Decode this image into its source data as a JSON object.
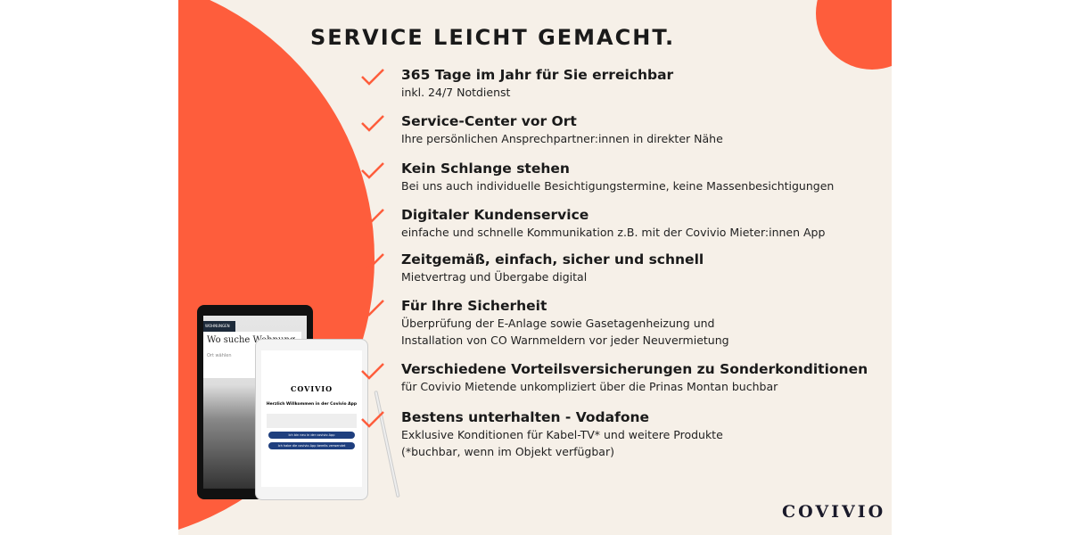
{
  "title": "SERVICE LEICHT GEMACHT.",
  "colors": {
    "accent": "#fe5d3c",
    "background": "#f6f0e8",
    "text": "#1a1a1a"
  },
  "items": [
    {
      "icon": "check-icon",
      "heading": "365 Tage im Jahr für Sie erreichbar",
      "lines": [
        "inkl. 24/7 Notdienst"
      ]
    },
    {
      "icon": "check-icon",
      "heading": "Service-Center vor Ort",
      "lines": [
        "Ihre persönlichen Ansprechpartner:innen in direkter Nähe"
      ]
    },
    {
      "icon": "check-icon",
      "heading": "Kein Schlange stehen",
      "lines": [
        "Bei uns auch individuelle Besichtigungstermine, keine Massenbesichtigungen"
      ]
    },
    {
      "icon": "check-icon",
      "heading": "Digitaler Kundenservice",
      "lines": [
        "einfache und schnelle Kommunikation z.B. mit der Covivio Mieter:innen App"
      ]
    },
    {
      "icon": "check-icon",
      "heading": "Zeitgemäß, einfach, sicher und schnell",
      "lines": [
        "Mietvertrag und Übergabe digital"
      ]
    },
    {
      "icon": "check-icon",
      "heading": "Für Ihre Sicherheit",
      "lines": [
        "Überprüfung der E-Anlage sowie Gasetagenheizung und",
        "Installation von CO Warnmeldern vor jeder Neuvermietung"
      ]
    },
    {
      "icon": "check-icon",
      "heading": "Verschiedene Vorteilsversicherungen zu Sonderkonditionen",
      "lines": [
        "für Covivio Mietende unkompliziert über die Prinas Montan buchbar"
      ]
    },
    {
      "icon": "check-icon",
      "heading": "Bestens unterhalten - Vodafone",
      "lines": [
        "Exklusive Konditionen für Kabel-TV* und weitere Produkte",
        "(*buchbar, wenn im Objekt verfügbar)"
      ]
    }
  ],
  "tablet_back": {
    "nav": "WOHNUNGEN",
    "headline": "Wo suche Wohnung",
    "field": "Ort wählen"
  },
  "tablet_front": {
    "logo": "COVIVIO",
    "welcome": "Herzlich Willkommen in der Covivio App",
    "buttons": [
      "Ich bin neu in der covivio App",
      "Ich habe die covivio App bereits verwendet"
    ]
  },
  "logo": "COVIVIO"
}
